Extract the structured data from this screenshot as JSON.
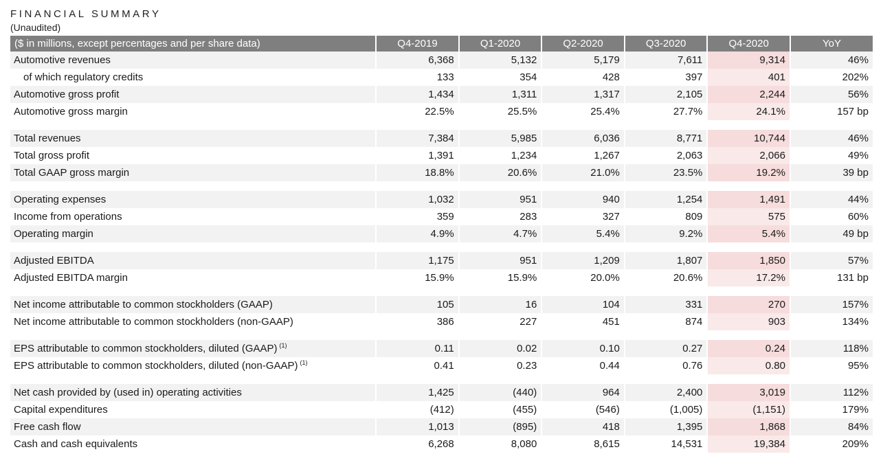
{
  "title": "FINANCIAL SUMMARY",
  "subtitle": "(Unaudited)",
  "header": [
    "($ in millions, except percentages and per share data)",
    "Q4-2019",
    "Q1-2020",
    "Q2-2020",
    "Q3-2020",
    "Q4-2020",
    "YoY"
  ],
  "highlight_color": "#f6dcdc",
  "header_color": "#7f7f7f",
  "groups": [
    [
      {
        "label": "Automotive revenues",
        "values": [
          "6,368",
          "5,132",
          "5,179",
          "7,611",
          "9,314",
          "46%"
        ]
      },
      {
        "label": "of which regulatory credits",
        "indent": true,
        "values": [
          "133",
          "354",
          "428",
          "397",
          "401",
          "202%"
        ]
      },
      {
        "label": "Automotive gross profit",
        "values": [
          "1,434",
          "1,311",
          "1,317",
          "2,105",
          "2,244",
          "56%"
        ]
      },
      {
        "label": "Automotive gross margin",
        "values": [
          "22.5%",
          "25.5%",
          "25.4%",
          "27.7%",
          "24.1%",
          "157 bp"
        ]
      }
    ],
    [
      {
        "label": "Total revenues",
        "values": [
          "7,384",
          "5,985",
          "6,036",
          "8,771",
          "10,744",
          "46%"
        ]
      },
      {
        "label": "Total gross profit",
        "values": [
          "1,391",
          "1,234",
          "1,267",
          "2,063",
          "2,066",
          "49%"
        ]
      },
      {
        "label": "Total GAAP gross margin",
        "values": [
          "18.8%",
          "20.6%",
          "21.0%",
          "23.5%",
          "19.2%",
          "39 bp"
        ]
      }
    ],
    [
      {
        "label": "Operating expenses",
        "values": [
          "1,032",
          "951",
          "940",
          "1,254",
          "1,491",
          "44%"
        ]
      },
      {
        "label": "Income from operations",
        "values": [
          "359",
          "283",
          "327",
          "809",
          "575",
          "60%"
        ]
      },
      {
        "label": "Operating margin",
        "values": [
          "4.9%",
          "4.7%",
          "5.4%",
          "9.2%",
          "5.4%",
          "49 bp"
        ]
      }
    ],
    [
      {
        "label": "Adjusted EBITDA",
        "values": [
          "1,175",
          "951",
          "1,209",
          "1,807",
          "1,850",
          "57%"
        ]
      },
      {
        "label": "Adjusted EBITDA margin",
        "values": [
          "15.9%",
          "15.9%",
          "20.0%",
          "20.6%",
          "17.2%",
          "131 bp"
        ]
      }
    ],
    [
      {
        "label": "Net income attributable to common stockholders (GAAP)",
        "values": [
          "105",
          "16",
          "104",
          "331",
          "270",
          "157%"
        ]
      },
      {
        "label": "Net income attributable to common stockholders (non-GAAP)",
        "values": [
          "386",
          "227",
          "451",
          "874",
          "903",
          "134%"
        ]
      }
    ],
    [
      {
        "label": "EPS attributable to common stockholders, diluted (GAAP)",
        "footnote": "(1)",
        "values": [
          "0.11",
          "0.02",
          "0.10",
          "0.27",
          "0.24",
          "118%"
        ]
      },
      {
        "label": "EPS attributable to common stockholders, diluted (non-GAAP)",
        "footnote": "(1)",
        "values": [
          "0.41",
          "0.23",
          "0.44",
          "0.76",
          "0.80",
          "95%"
        ]
      }
    ],
    [
      {
        "label": "Net cash provided by (used in) operating activities",
        "values": [
          "1,425",
          "(440)",
          "964",
          "2,400",
          "3,019",
          "112%"
        ]
      },
      {
        "label": "Capital expenditures",
        "values": [
          "(412)",
          "(455)",
          "(546)",
          "(1,005)",
          "(1,151)",
          "179%"
        ]
      },
      {
        "label": "Free cash flow",
        "values": [
          "1,013",
          "(895)",
          "418",
          "1,395",
          "1,868",
          "84%"
        ]
      },
      {
        "label": "Cash and cash equivalents",
        "values": [
          "6,268",
          "8,080",
          "8,615",
          "14,531",
          "19,384",
          "209%"
        ]
      }
    ]
  ]
}
